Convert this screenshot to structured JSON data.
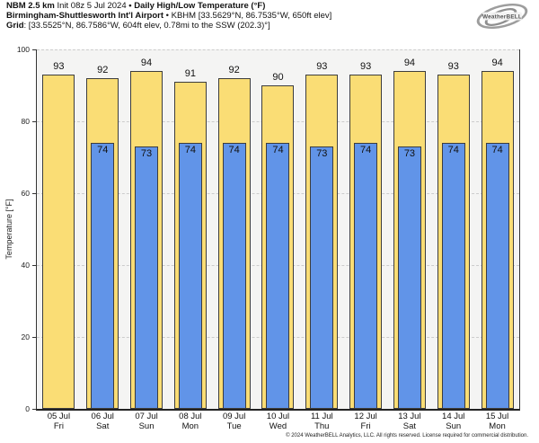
{
  "header": {
    "line1": {
      "bold_model": "NBM 2.5 km",
      "init": " Init 08z 5 Jul 2024 ",
      "bold_title": "• Daily High/Low Temperature (°F)"
    },
    "line2": {
      "bold_station": "Birmingham-Shuttlesworth Int'l Airport",
      "station_details": " • KBHM [33.5629°N, 86.7535°W, 650ft elev]"
    },
    "line3": {
      "bold_grid": "Grid",
      "grid_details": ": [33.5525°N, 86.7586°W, 604ft elev, 0.78mi to the SSW (202.3)°]"
    },
    "logo_text": "WeatherBELL"
  },
  "chart_data": {
    "type": "bar",
    "title": "NBM 2.5 km Init 08z 5 Jul 2024 • Daily High/Low Temperature (°F)",
    "subtitle": "Birmingham-Shuttlesworth Int'l Airport • KBHM [33.5629°N, 86.7535°W, 650ft elev]",
    "grid_info": "Grid: [33.5525°N, 86.7586°W, 604ft elev, 0.78mi to the SSW (202.3)°]",
    "xlabel": "",
    "ylabel": "Temperature [°F]",
    "ylim": [
      0,
      100
    ],
    "yticks": [
      0,
      20,
      40,
      60,
      80,
      100
    ],
    "grid": "horizontal-dashed",
    "legend_position": "none",
    "categories": [
      {
        "date": "05 Jul",
        "day": "Fri"
      },
      {
        "date": "06 Jul",
        "day": "Sat"
      },
      {
        "date": "07 Jul",
        "day": "Sun"
      },
      {
        "date": "08 Jul",
        "day": "Mon"
      },
      {
        "date": "09 Jul",
        "day": "Tue"
      },
      {
        "date": "10 Jul",
        "day": "Wed"
      },
      {
        "date": "11 Jul",
        "day": "Thu"
      },
      {
        "date": "12 Jul",
        "day": "Fri"
      },
      {
        "date": "13 Jul",
        "day": "Sat"
      },
      {
        "date": "14 Jul",
        "day": "Sun"
      },
      {
        "date": "15 Jul",
        "day": "Mon"
      }
    ],
    "series": [
      {
        "name": "Daily High",
        "color": "#FADD75",
        "values": [
          93,
          92,
          94,
          91,
          92,
          90,
          93,
          93,
          94,
          93,
          94
        ]
      },
      {
        "name": "Daily Low",
        "color": "#6194E8",
        "values": [
          null,
          74,
          73,
          74,
          74,
          74,
          73,
          74,
          73,
          74,
          74
        ]
      }
    ]
  },
  "colors": {
    "bar_border": "#3d3d3d",
    "plot_bg": "#f4f4f3",
    "grid_line": "#cccccc",
    "axis": "#333333"
  },
  "footer": "© 2024 WeatherBELL Analytics, LLC. All rights reserved. License required for commercial distribution."
}
